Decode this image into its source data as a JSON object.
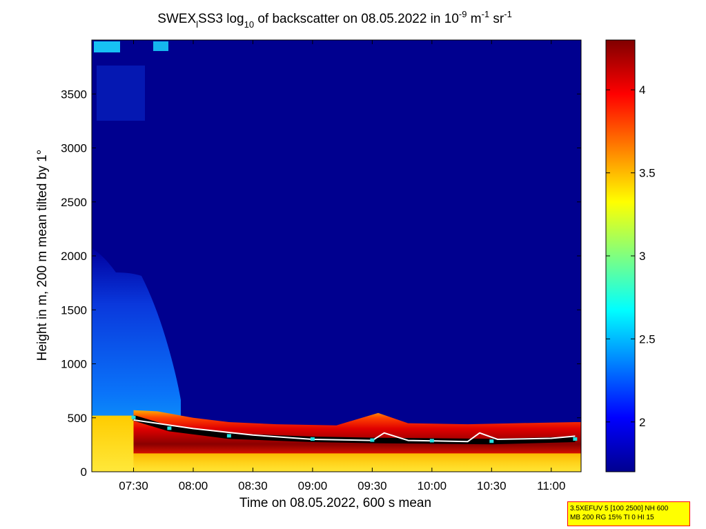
{
  "chart_data": {
    "type": "heatmap",
    "title": {
      "prefix": "SWEX",
      "prefix_sub": "l",
      "mid": "SS3 log",
      "mid_sub": "10",
      "main": " of backscatter on 08.05.2022 in 10",
      "exp1": "-9",
      "unit1": " m",
      "exp2": "-1",
      "unit2": " sr",
      "exp3": "-1"
    },
    "xlabel": "Time on 08.05.2022, 600 s mean",
    "ylabel": "Height in m, 200 m mean tilted by 1°",
    "x_time_range_hours": [
      7.15,
      11.25
    ],
    "x_ticks": [
      {
        "label": "07:30",
        "hour": 7.5
      },
      {
        "label": "08:00",
        "hour": 8.0
      },
      {
        "label": "08:30",
        "hour": 8.5
      },
      {
        "label": "09:00",
        "hour": 9.0
      },
      {
        "label": "09:30",
        "hour": 9.5
      },
      {
        "label": "10:00",
        "hour": 10.0
      },
      {
        "label": "10:30",
        "hour": 10.5
      },
      {
        "label": "11:00",
        "hour": 11.0
      }
    ],
    "ylim": [
      0,
      4000
    ],
    "y_ticks": [
      "0",
      "500",
      "1000",
      "1500",
      "2000",
      "2500",
      "3000",
      "3500"
    ],
    "colorbar": {
      "range": [
        1.7,
        4.3
      ],
      "ticks": [
        "2",
        "2.5",
        "3",
        "3.5",
        "4"
      ],
      "colormap": "jet"
    },
    "boundary_layer_top_m": [
      {
        "hour": 7.5,
        "height": 570
      },
      {
        "hour": 7.7,
        "height": 560
      },
      {
        "hour": 8.0,
        "height": 500
      },
      {
        "hour": 8.3,
        "height": 460
      },
      {
        "hour": 8.7,
        "height": 440
      },
      {
        "hour": 9.2,
        "height": 430
      },
      {
        "hour": 9.55,
        "height": 545
      },
      {
        "hour": 9.8,
        "height": 450
      },
      {
        "hour": 10.3,
        "height": 440
      },
      {
        "hour": 10.7,
        "height": 450
      },
      {
        "hour": 11.2,
        "height": 460
      }
    ],
    "white_layer_line_m": [
      {
        "hour": 7.5,
        "height": 480
      },
      {
        "hour": 8.0,
        "height": 400
      },
      {
        "hour": 8.5,
        "height": 340
      },
      {
        "hour": 9.0,
        "height": 300
      },
      {
        "hour": 9.5,
        "height": 290
      },
      {
        "hour": 9.6,
        "height": 360
      },
      {
        "hour": 9.8,
        "height": 290
      },
      {
        "hour": 10.3,
        "height": 280
      },
      {
        "hour": 10.4,
        "height": 360
      },
      {
        "hour": 10.55,
        "height": 300
      },
      {
        "hour": 11.0,
        "height": 310
      },
      {
        "hour": 11.2,
        "height": 330
      }
    ],
    "black_layer_line_m": [
      {
        "hour": 7.5,
        "height": 500
      },
      {
        "hour": 7.8,
        "height": 400
      },
      {
        "hour": 8.3,
        "height": 330
      },
      {
        "hour": 9.0,
        "height": 300
      },
      {
        "hour": 9.5,
        "height": 290
      },
      {
        "hour": 10.0,
        "height": 285
      },
      {
        "hour": 10.5,
        "height": 280
      },
      {
        "hour": 11.2,
        "height": 300
      }
    ]
  },
  "info_box": {
    "line1": "3.5XEFUV 5 [100 2500] NH 600",
    "line2": "MB 200 RG 15% TI 0 HI 15"
  }
}
